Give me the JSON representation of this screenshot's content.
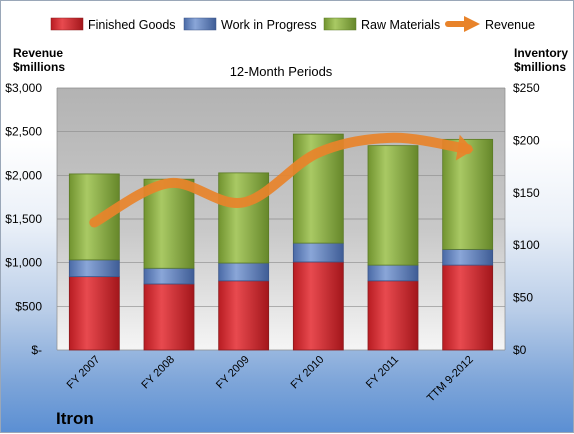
{
  "chart_data": {
    "type": "bar",
    "stacked": true,
    "subtitle": "12-Month Periods",
    "company": "Itron",
    "categories": [
      "FY 2007",
      "FY 2008",
      "FY 2009",
      "FY 2010",
      "FY 2011",
      "TTM 9-2012"
    ],
    "y_left": {
      "label_line1": "Revenue",
      "label_line2": "$millions",
      "range": [
        0,
        3000
      ],
      "ticks": [
        0,
        500,
        1000,
        1500,
        2000,
        2500,
        3000
      ],
      "tick_labels": [
        "$-",
        "$500",
        "$1,000",
        "$1,500",
        "$2,000",
        "$2,500",
        "$3,000"
      ]
    },
    "y_right": {
      "label_line1": "Inventory",
      "label_line2": "$millions",
      "range": [
        0,
        250
      ],
      "ticks": [
        0,
        50,
        100,
        150,
        200,
        250
      ],
      "tick_labels": [
        "$0",
        "$50",
        "$100",
        "$150",
        "$200",
        "$250"
      ]
    },
    "series": [
      {
        "name": "Finished Goods",
        "axis": "right",
        "color": "#d9232a",
        "values": [
          70,
          63,
          66,
          84,
          66,
          81
        ]
      },
      {
        "name": "Work in Progress",
        "axis": "right",
        "color": "#5b7fc0",
        "values": [
          16,
          15,
          17,
          18,
          15,
          15
        ]
      },
      {
        "name": "Raw Materials",
        "axis": "right",
        "color": "#8cb042",
        "values": [
          82,
          85,
          86,
          104,
          114,
          105
        ]
      },
      {
        "name": "Revenue",
        "axis": "left",
        "type": "line",
        "color": "#e8832a",
        "values": [
          1460,
          1910,
          1690,
          2260,
          2430,
          2300
        ]
      }
    ],
    "grid": true,
    "legend_position": "top"
  }
}
